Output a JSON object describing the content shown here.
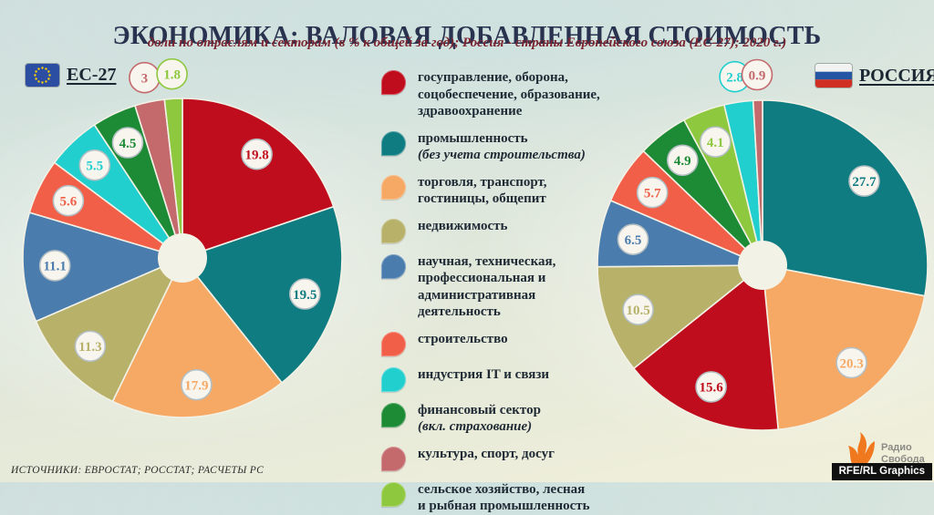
{
  "header": {
    "title": "ЭКОНОМИКА: ВАЛОВАЯ ДОБАВЛЕННАЯ СТОИМОСТЬ",
    "subtitle": "доли по отраслям и секторам (в % к общей за год); Россия - страны Европейского союза (ЕС-27); 2020 г.)"
  },
  "chart_data": {
    "type": "pie",
    "title": "ЭКОНОМИКА: ВАЛОВАЯ ДОБАВЛЕННАЯ СТОИМОСТЬ",
    "subtitle": "доли по отраслям и секторам (в % к общей за год); Россия - страны Европейского союза (ЕС-27); 2020 г.)",
    "legend_position": "center-between-pies",
    "sectors": [
      {
        "id": "gov",
        "label": "госуправление, оборона,\nсоцобеспечение, образование,\nздравоохранение",
        "note": "",
        "color": "#c00d1d"
      },
      {
        "id": "industry",
        "label": "промышленность",
        "note": "(без учета строительства)",
        "color": "#0f7c82"
      },
      {
        "id": "trade",
        "label": "торговля, транспорт,\nгостиницы, общепит",
        "note": "",
        "color": "#f6a964"
      },
      {
        "id": "real-estate",
        "label": "недвижимость",
        "note": "",
        "color": "#b7b169"
      },
      {
        "id": "science",
        "label": "научная, техническая,\nпрофессиональная и\nадминистративная\nдеятельность",
        "note": "",
        "color": "#4a7cad"
      },
      {
        "id": "construction",
        "label": "строительство",
        "note": "",
        "color": "#f25f48"
      },
      {
        "id": "it",
        "label": "индустрия IT и связи",
        "note": "",
        "color": "#21cfcf"
      },
      {
        "id": "finance",
        "label": "финансовый сектор",
        "note": "(вкл. страхование)",
        "color": "#1d8b35"
      },
      {
        "id": "culture",
        "label": "культура, спорт, досуг",
        "note": "",
        "color": "#c4696c"
      },
      {
        "id": "agriculture",
        "label": "сельское хозяйство, лесная\nи рыбная промышленность",
        "note": "",
        "color": "#8ec83e"
      }
    ],
    "pies": [
      {
        "id": "eu",
        "name": "ЕС-27",
        "flag": "eu-flag",
        "slices": [
          {
            "sector": 0,
            "value": 19.8
          },
          {
            "sector": 1,
            "value": 19.5
          },
          {
            "sector": 2,
            "value": 17.9
          },
          {
            "sector": 3,
            "value": 11.3
          },
          {
            "sector": 4,
            "value": 11.1
          },
          {
            "sector": 5,
            "value": 5.6
          },
          {
            "sector": 6,
            "value": 5.5
          },
          {
            "sector": 7,
            "value": 4.5
          },
          {
            "sector": 8,
            "value": 3
          },
          {
            "sector": 9,
            "value": 1.8
          }
        ]
      },
      {
        "id": "russia",
        "name": "РОССИЯ",
        "flag": "ru-flag",
        "slices": [
          {
            "sector": 1,
            "value": 27.7
          },
          {
            "sector": 2,
            "value": 20.3
          },
          {
            "sector": 0,
            "value": 15.6
          },
          {
            "sector": 3,
            "value": 10.5
          },
          {
            "sector": 4,
            "value": 6.5
          },
          {
            "sector": 5,
            "value": 5.7
          },
          {
            "sector": 7,
            "value": 4.9
          },
          {
            "sector": 9,
            "value": 4.1
          },
          {
            "sector": 6,
            "value": 2.8
          },
          {
            "sector": 8,
            "value": 0.9
          }
        ]
      }
    ]
  },
  "footer": {
    "sources": "ИСТОЧНИКИ: ЕВРОСТАТ; РОССТАТ; РАСЧЕТЫ РС",
    "logo_line1": "Радио",
    "logo_line2": "Свобода",
    "credit": "RFE/RL Graphics"
  }
}
